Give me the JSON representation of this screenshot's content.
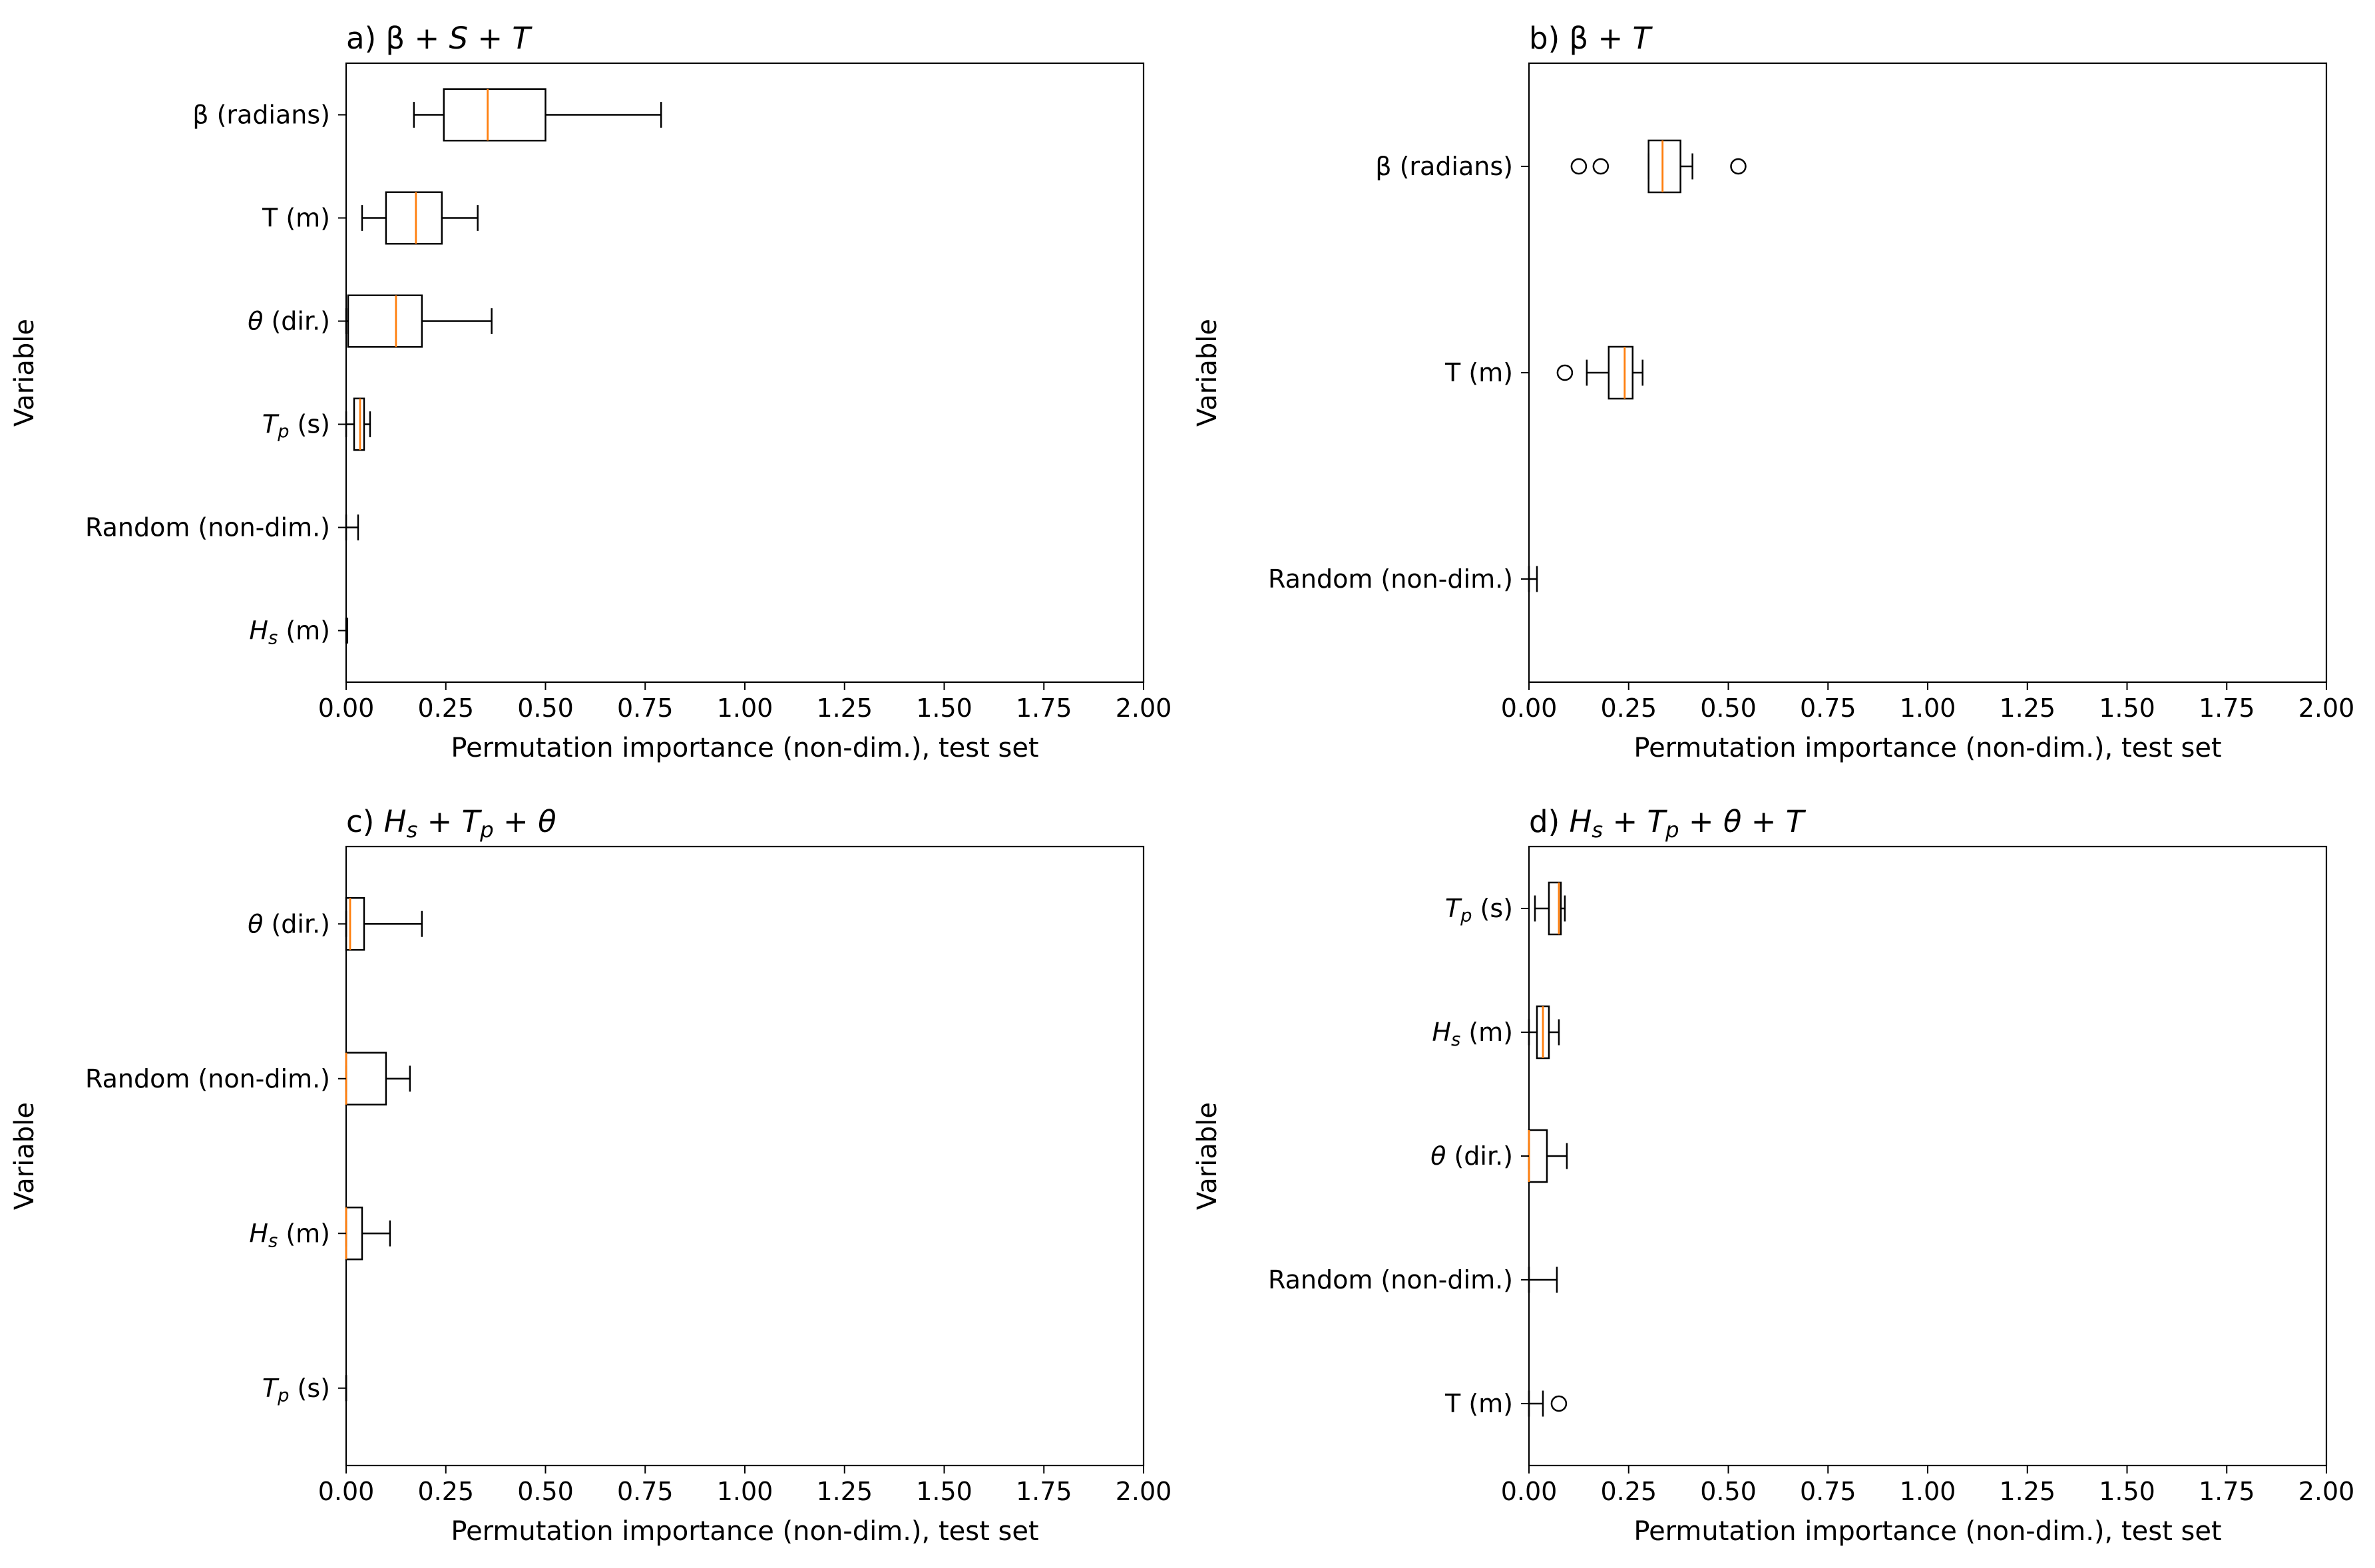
{
  "chart_data": [
    {
      "type": "boxplot",
      "orientation": "horizontal",
      "title_prefix": "a) ",
      "title": "β + S + T",
      "title_parts": [
        {
          "text": "a) β + ",
          "italic": false
        },
        {
          "text": "S",
          "italic": true
        },
        {
          "text": " + ",
          "italic": false
        },
        {
          "text": "T",
          "italic": true
        }
      ],
      "xlabel": "Permutation importance (non-dim.), test set",
      "ylabel": "Variable",
      "xlim": [
        0,
        2
      ],
      "xticks": [
        "0.00",
        "0.25",
        "0.50",
        "0.75",
        "1.00",
        "1.25",
        "1.50",
        "1.75",
        "2.00"
      ],
      "grid": false,
      "categories": [
        {
          "label": [
            {
              "text": "β (radians)",
              "italic": false
            }
          ],
          "whisker_low": 0.17,
          "q1": 0.245,
          "median": 0.355,
          "q3": 0.5,
          "whisker_high": 0.79,
          "outliers": []
        },
        {
          "label": [
            {
              "text": "T (m)",
              "italic": false
            }
          ],
          "whisker_low": 0.04,
          "q1": 0.1,
          "median": 0.175,
          "q3": 0.24,
          "whisker_high": 0.33,
          "outliers": []
        },
        {
          "label": [
            {
              "text": "θ",
              "italic": true
            },
            {
              "text": " (dir.)",
              "italic": false
            }
          ],
          "whisker_low": 0.0,
          "q1": 0.005,
          "median": 0.125,
          "q3": 0.19,
          "whisker_high": 0.365,
          "outliers": []
        },
        {
          "label": [
            {
              "text": "T",
              "italic": true
            },
            {
              "text": "p",
              "italic": true,
              "sub": true
            },
            {
              "text": " (s)",
              "italic": false
            }
          ],
          "whisker_low": 0.0,
          "q1": 0.02,
          "median": 0.035,
          "q3": 0.045,
          "whisker_high": 0.06,
          "outliers": []
        },
        {
          "label": [
            {
              "text": "Random (non-dim.)",
              "italic": false
            }
          ],
          "whisker_low": 0.0,
          "q1": 0.0,
          "median": 0.0,
          "q3": 0.0,
          "whisker_high": 0.03,
          "outliers": []
        },
        {
          "label": [
            {
              "text": "H",
              "italic": true
            },
            {
              "text": "s",
              "italic": true,
              "sub": true
            },
            {
              "text": " (m)",
              "italic": false
            }
          ],
          "whisker_low": 0.0,
          "q1": 0.0,
          "median": 0.0,
          "q3": 0.0,
          "whisker_high": 0.003,
          "outliers": []
        }
      ]
    },
    {
      "type": "boxplot",
      "orientation": "horizontal",
      "title": "β + T",
      "title_parts": [
        {
          "text": "b) β + ",
          "italic": false
        },
        {
          "text": "T",
          "italic": true
        }
      ],
      "xlabel": "Permutation importance (non-dim.), test set",
      "ylabel": "Variable",
      "xlim": [
        0,
        2
      ],
      "xticks": [
        "0.00",
        "0.25",
        "0.50",
        "0.75",
        "1.00",
        "1.25",
        "1.50",
        "1.75",
        "2.00"
      ],
      "grid": false,
      "categories": [
        {
          "label": [
            {
              "text": "β (radians)",
              "italic": false
            }
          ],
          "whisker_low": 0.3,
          "q1": 0.3,
          "median": 0.335,
          "q3": 0.38,
          "whisker_high": 0.41,
          "outliers": [
            0.125,
            0.18,
            0.525
          ]
        },
        {
          "label": [
            {
              "text": "T (m)",
              "italic": false
            }
          ],
          "whisker_low": 0.145,
          "q1": 0.2,
          "median": 0.24,
          "q3": 0.26,
          "whisker_high": 0.285,
          "outliers": [
            0.09
          ]
        },
        {
          "label": [
            {
              "text": "Random (non-dim.)",
              "italic": false
            }
          ],
          "whisker_low": 0.0,
          "q1": 0.0,
          "median": 0.0,
          "q3": 0.0,
          "whisker_high": 0.02,
          "outliers": []
        }
      ]
    },
    {
      "type": "boxplot",
      "orientation": "horizontal",
      "title_parts": [
        {
          "text": "c) ",
          "italic": false
        },
        {
          "text": "H",
          "italic": true
        },
        {
          "text": "s",
          "italic": true,
          "sub": true
        },
        {
          "text": " + ",
          "italic": false
        },
        {
          "text": "T",
          "italic": true
        },
        {
          "text": "p",
          "italic": true,
          "sub": true
        },
        {
          "text": " + ",
          "italic": false
        },
        {
          "text": "θ",
          "italic": true
        }
      ],
      "xlabel": "Permutation importance (non-dim.), test set",
      "ylabel": "Variable",
      "xlim": [
        0,
        2
      ],
      "xticks": [
        "0.00",
        "0.25",
        "0.50",
        "0.75",
        "1.00",
        "1.25",
        "1.50",
        "1.75",
        "2.00"
      ],
      "grid": false,
      "categories": [
        {
          "label": [
            {
              "text": "θ",
              "italic": true
            },
            {
              "text": " (dir.)",
              "italic": false
            }
          ],
          "whisker_low": 0.0,
          "q1": 0.0,
          "median": 0.01,
          "q3": 0.045,
          "whisker_high": 0.19,
          "outliers": []
        },
        {
          "label": [
            {
              "text": "Random (non-dim.)",
              "italic": false
            }
          ],
          "whisker_low": 0.0,
          "q1": 0.0,
          "median": 0.0,
          "q3": 0.1,
          "whisker_high": 0.16,
          "outliers": []
        },
        {
          "label": [
            {
              "text": "H",
              "italic": true
            },
            {
              "text": "s",
              "italic": true,
              "sub": true
            },
            {
              "text": " (m)",
              "italic": false
            }
          ],
          "whisker_low": 0.0,
          "q1": 0.0,
          "median": 0.0,
          "q3": 0.04,
          "whisker_high": 0.11,
          "outliers": []
        },
        {
          "label": [
            {
              "text": "T",
              "italic": true
            },
            {
              "text": "p",
              "italic": true,
              "sub": true
            },
            {
              "text": " (s)",
              "italic": false
            }
          ],
          "whisker_low": 0.0,
          "q1": 0.0,
          "median": 0.0,
          "q3": 0.0,
          "whisker_high": 0.0,
          "outliers": []
        }
      ]
    },
    {
      "type": "boxplot",
      "orientation": "horizontal",
      "title_parts": [
        {
          "text": "d) ",
          "italic": false
        },
        {
          "text": "H",
          "italic": true
        },
        {
          "text": "s",
          "italic": true,
          "sub": true
        },
        {
          "text": " + ",
          "italic": false
        },
        {
          "text": "T",
          "italic": true
        },
        {
          "text": "p",
          "italic": true,
          "sub": true
        },
        {
          "text": " + ",
          "italic": false
        },
        {
          "text": "θ",
          "italic": true
        },
        {
          "text": " + ",
          "italic": false
        },
        {
          "text": "T",
          "italic": true
        }
      ],
      "xlabel": "Permutation importance (non-dim.), test set",
      "ylabel": "Variable",
      "xlim": [
        0,
        2
      ],
      "xticks": [
        "0.00",
        "0.25",
        "0.50",
        "0.75",
        "1.00",
        "1.25",
        "1.50",
        "1.75",
        "2.00"
      ],
      "grid": false,
      "categories": [
        {
          "label": [
            {
              "text": "T",
              "italic": true
            },
            {
              "text": "p",
              "italic": true,
              "sub": true
            },
            {
              "text": " (s)",
              "italic": false
            }
          ],
          "whisker_low": 0.015,
          "q1": 0.05,
          "median": 0.075,
          "q3": 0.08,
          "whisker_high": 0.09,
          "outliers": []
        },
        {
          "label": [
            {
              "text": "H",
              "italic": true
            },
            {
              "text": "s",
              "italic": true,
              "sub": true
            },
            {
              "text": " (m)",
              "italic": false
            }
          ],
          "whisker_low": 0.0,
          "q1": 0.02,
          "median": 0.035,
          "q3": 0.05,
          "whisker_high": 0.075,
          "outliers": []
        },
        {
          "label": [
            {
              "text": "θ",
              "italic": true
            },
            {
              "text": " (dir.)",
              "italic": false
            }
          ],
          "whisker_low": 0.0,
          "q1": 0.0,
          "median": 0.0,
          "q3": 0.045,
          "whisker_high": 0.095,
          "outliers": []
        },
        {
          "label": [
            {
              "text": "Random (non-dim.)",
              "italic": false
            }
          ],
          "whisker_low": 0.0,
          "q1": 0.0,
          "median": 0.0,
          "q3": 0.0,
          "whisker_high": 0.07,
          "outliers": []
        },
        {
          "label": [
            {
              "text": "T (m)",
              "italic": false
            }
          ],
          "whisker_low": 0.0,
          "q1": 0.0,
          "median": 0.0,
          "q3": 0.0,
          "whisker_high": 0.035,
          "outliers": [
            0.075
          ]
        }
      ]
    }
  ],
  "style": {
    "box_color": "#000000",
    "median_color": "#ff7f0e",
    "background": "#ffffff"
  }
}
